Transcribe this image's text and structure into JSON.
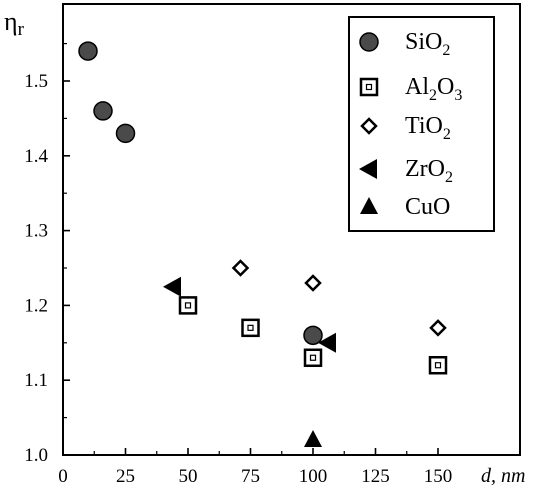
{
  "chart_data": {
    "type": "scatter",
    "xlabel_main": "d",
    "xlabel_unit": "nm",
    "ylabel_main": "η",
    "ylabel_sub": "r",
    "xlim": [
      0,
      160
    ],
    "ylim": [
      1.0,
      1.6
    ],
    "x_ticks": [
      0,
      25,
      50,
      75,
      100,
      125,
      150
    ],
    "y_ticks": [
      1.0,
      1.1,
      1.2,
      1.3,
      1.4,
      1.5
    ],
    "y_tick_labels": [
      "1.0",
      "1.1",
      "1.2",
      "1.3",
      "1.4",
      "1.5"
    ],
    "legend_position": "top-right",
    "series": [
      {
        "name_main": "SiO",
        "name_parts": [
          {
            "t": "SiO",
            "sub": false
          },
          {
            "t": "2",
            "sub": true
          }
        ],
        "marker": "filled-circle",
        "points": [
          {
            "x": 10,
            "y": 1.54
          },
          {
            "x": 16,
            "y": 1.46
          },
          {
            "x": 25,
            "y": 1.43
          },
          {
            "x": 100,
            "y": 1.16
          }
        ]
      },
      {
        "name_parts": [
          {
            "t": "Al",
            "sub": false
          },
          {
            "t": "2",
            "sub": true
          },
          {
            "t": "O",
            "sub": false
          },
          {
            "t": "3",
            "sub": true
          }
        ],
        "marker": "hollow-square",
        "points": [
          {
            "x": 50,
            "y": 1.2
          },
          {
            "x": 75,
            "y": 1.17
          },
          {
            "x": 100,
            "y": 1.13
          },
          {
            "x": 150,
            "y": 1.12
          }
        ]
      },
      {
        "name_parts": [
          {
            "t": "TiO",
            "sub": false
          },
          {
            "t": "2",
            "sub": true
          }
        ],
        "marker": "hollow-diamond",
        "points": [
          {
            "x": 71,
            "y": 1.25
          },
          {
            "x": 100,
            "y": 1.23
          },
          {
            "x": 150,
            "y": 1.17
          }
        ]
      },
      {
        "name_parts": [
          {
            "t": "ZrO",
            "sub": false
          },
          {
            "t": "2",
            "sub": true
          }
        ],
        "marker": "left-triangle",
        "points": [
          {
            "x": 44,
            "y": 1.225
          },
          {
            "x": 106,
            "y": 1.15
          }
        ]
      },
      {
        "name_parts": [
          {
            "t": "CuO",
            "sub": false
          }
        ],
        "marker": "up-triangle",
        "points": [
          {
            "x": 100,
            "y": 1.02
          }
        ]
      }
    ]
  }
}
